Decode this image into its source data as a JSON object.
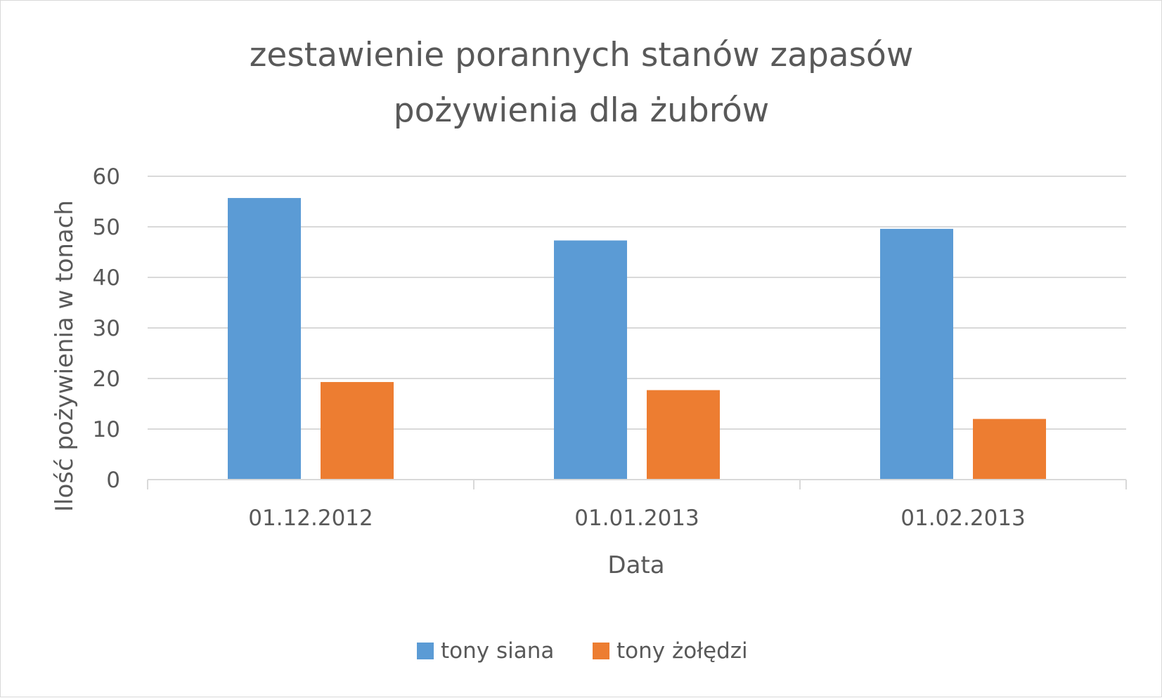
{
  "chart_data": {
    "type": "bar",
    "title": "zestawienie porannych stanów zapasów pożywienia dla żubrów",
    "title_lines": [
      "zestawienie porannych stanów zapasów",
      "pożywienia dla żubrów"
    ],
    "xlabel": "Data",
    "ylabel": "Ilość pożywienia w tonach",
    "categories": [
      "01.12.2012",
      "01.01.2013",
      "01.02.2013"
    ],
    "series": [
      {
        "name": "tony siana",
        "color": "#5b9bd5",
        "values": [
          55.7,
          47.3,
          49.6
        ]
      },
      {
        "name": "tony żołędzi",
        "color": "#ed7d31",
        "values": [
          19.3,
          17.7,
          12.0
        ]
      }
    ],
    "ylim": [
      0,
      60
    ],
    "yticks": [
      0,
      10,
      20,
      30,
      40,
      50,
      60
    ],
    "grid": true,
    "legend_position": "bottom"
  }
}
